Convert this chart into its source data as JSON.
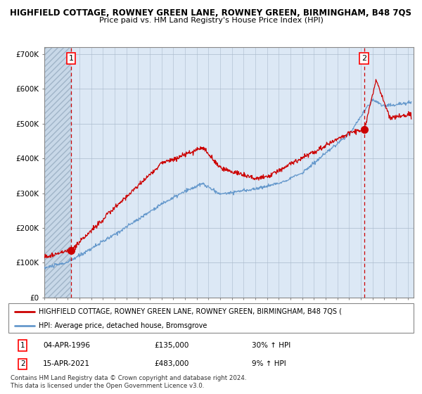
{
  "title1": "HIGHFIELD COTTAGE, ROWNEY GREEN LANE, ROWNEY GREEN, BIRMINGHAM, B48 7QS",
  "title2": "Price paid vs. HM Land Registry's House Price Index (HPI)",
  "ylim": [
    0,
    720000
  ],
  "yticks": [
    0,
    100000,
    200000,
    300000,
    400000,
    500000,
    600000,
    700000
  ],
  "ytick_labels": [
    "£0",
    "£100K",
    "£200K",
    "£300K",
    "£400K",
    "£500K",
    "£600K",
    "£700K"
  ],
  "legend_red": "HIGHFIELD COTTAGE, ROWNEY GREEN LANE, ROWNEY GREEN, BIRMINGHAM, B48 7QS (",
  "legend_blue": "HPI: Average price, detached house, Bromsgrove",
  "point1_date": "04-APR-1996",
  "point1_price": "£135,000",
  "point1_hpi": "30% ↑ HPI",
  "point2_date": "15-APR-2021",
  "point2_price": "£483,000",
  "point2_hpi": "9% ↑ HPI",
  "footer": "Contains HM Land Registry data © Crown copyright and database right 2024.\nThis data is licensed under the Open Government Licence v3.0.",
  "red_color": "#cc0000",
  "blue_color": "#6699cc",
  "bg_color": "#dce8f5",
  "grid_color": "#aabbcc",
  "vline_color": "#cc0000",
  "point1_x": 1996.27,
  "point1_y": 135000,
  "point2_x": 2021.29,
  "point2_y": 483000,
  "xlim_left": 1994.0,
  "xlim_right": 2025.5
}
